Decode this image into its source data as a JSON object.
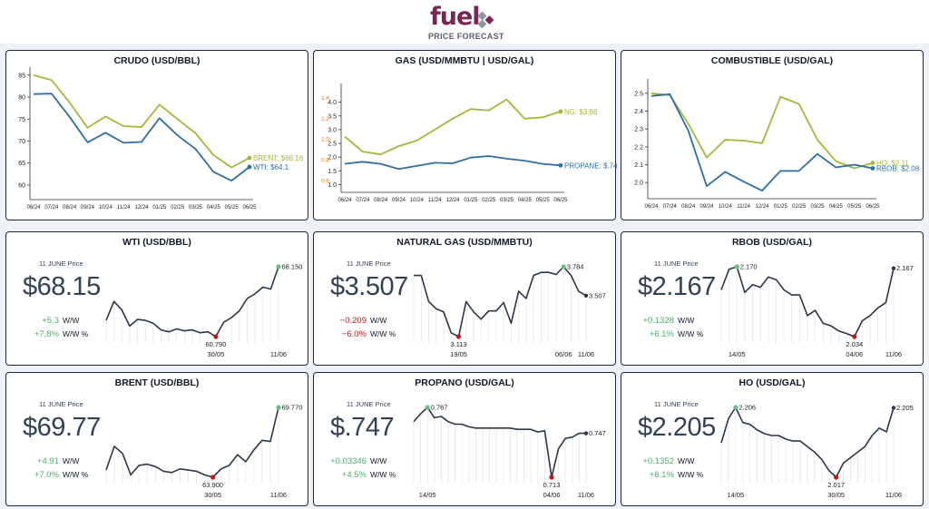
{
  "header": {
    "logo_text": "fuel",
    "subtitle": "PRICE FORECAST",
    "colors": {
      "brand": "#7a2553",
      "accent": "#8a9a9f"
    }
  },
  "chart_data": [
    {
      "id": "crudo",
      "type": "line",
      "title": "CRUDO (USD/BBL)",
      "categories": [
        "06/24",
        "07/24",
        "08/24",
        "09/24",
        "10/24",
        "11/24",
        "12/24",
        "01/25",
        "02/25",
        "03/25",
        "04/25",
        "05/25",
        "06/25"
      ],
      "ylim": [
        57.5,
        86
      ],
      "yticks": [
        60,
        65,
        70,
        75,
        80,
        85
      ],
      "series": [
        {
          "name": "BRENT",
          "label": "BRENT: $66.16",
          "color": "#a3b93b",
          "values": [
            85.0,
            83.9,
            78.8,
            73.0,
            75.6,
            73.4,
            73.2,
            78.3,
            75.0,
            71.8,
            66.8,
            64.0,
            66.16
          ]
        },
        {
          "name": "WTI",
          "label": "WTI: $64.1",
          "color": "#2f6ea3",
          "values": [
            80.7,
            80.8,
            75.5,
            69.7,
            71.9,
            69.6,
            69.8,
            75.2,
            71.3,
            68.2,
            63.0,
            61.0,
            64.1
          ]
        }
      ]
    },
    {
      "id": "gas",
      "type": "line",
      "title": "GAS (USD/MMBTU | USD/GAL)",
      "categories": [
        "06/24",
        "07/24",
        "08/24",
        "09/24",
        "10/24",
        "11/24",
        "12/24",
        "01/25",
        "02/25",
        "03/25",
        "04/25",
        "05/25",
        "06/25"
      ],
      "ylim": [
        0.85,
        4.55
      ],
      "yticks": [
        1.0,
        1.5,
        2.0,
        2.5,
        3.0,
        3.5,
        4.0
      ],
      "ylim2": [
        0.52,
        1.5
      ],
      "yticks2": [
        0.6,
        0.8,
        1.0,
        1.2,
        1.4
      ],
      "series": [
        {
          "name": "NG",
          "label": "NG: $3.66",
          "color": "#a3b93b",
          "axis": "left",
          "values": [
            2.75,
            2.2,
            2.1,
            2.4,
            2.6,
            3.0,
            3.4,
            3.75,
            3.7,
            4.1,
            3.4,
            3.45,
            3.66
          ]
        },
        {
          "name": "PROPANE",
          "label": "PROPANE: $.74",
          "color": "#2f6ea3",
          "axis": "right",
          "values": [
            0.76,
            0.78,
            0.76,
            0.71,
            0.74,
            0.77,
            0.765,
            0.82,
            0.835,
            0.81,
            0.79,
            0.76,
            0.745
          ]
        }
      ]
    },
    {
      "id": "combustible",
      "type": "line",
      "title": "COMBUSTIBLE (USD/GAL)",
      "categories": [
        "06/24",
        "07/24",
        "08/24",
        "09/24",
        "10/24",
        "11/24",
        "12/24",
        "01/25",
        "02/25",
        "03/25",
        "04/25",
        "05/25",
        "06/25"
      ],
      "ylim": [
        1.93,
        2.56
      ],
      "yticks": [
        2.0,
        2.1,
        2.2,
        2.3,
        2.4,
        2.5
      ],
      "series": [
        {
          "name": "HO",
          "label": "HO: $2.11",
          "color": "#a3b93b",
          "values": [
            2.5,
            2.49,
            2.33,
            2.14,
            2.24,
            2.235,
            2.22,
            2.48,
            2.44,
            2.24,
            2.12,
            2.08,
            2.11
          ]
        },
        {
          "name": "RBOB",
          "label": "RBOB: $2.08",
          "color": "#2f6ea3",
          "values": [
            2.485,
            2.495,
            2.29,
            1.98,
            2.06,
            2.005,
            1.955,
            2.065,
            2.065,
            2.16,
            2.085,
            2.1,
            2.08
          ]
        }
      ]
    },
    {
      "id": "wti",
      "type": "line",
      "title": "WTI (USD/BBL)",
      "price_caption": "11 JUNE Price",
      "price": "$68.15",
      "change": {
        "ww": "+5.3",
        "ww_pct": "+7.8%",
        "ww_label": "W/W",
        "ww_pct_label": "W/W %",
        "dir": "pos"
      },
      "values": [
        62.5,
        64.5,
        63.6,
        61.9,
        62.6,
        62.5,
        62.2,
        61.5,
        61.3,
        61.6,
        61.4,
        61.5,
        61.2,
        61.3,
        60.79,
        62.3,
        62.8,
        63.5,
        64.8,
        65.3,
        66.0,
        65.8,
        68.15
      ],
      "min": {
        "index": 14,
        "label": "60.790",
        "date": "30/05"
      },
      "max": {
        "index": 22,
        "label": "68.150"
      },
      "xticks": [
        {
          "index": 14,
          "label": "30/05"
        },
        {
          "index": 22,
          "label": "11/06"
        }
      ]
    },
    {
      "id": "natgas",
      "type": "line",
      "title": "NATURAL GAS (USD/MMBTU)",
      "price_caption": "11 JUNE Price",
      "price": "$3.507",
      "change": {
        "ww": "−0.209",
        "ww_pct": "−6.0%",
        "ww_label": "W/W",
        "ww_pct_label": "W/W %",
        "dir": "neg"
      },
      "values": [
        3.7,
        3.7,
        3.45,
        3.38,
        3.35,
        3.15,
        3.113,
        3.45,
        3.35,
        3.28,
        3.36,
        3.36,
        3.44,
        3.24,
        3.55,
        3.48,
        3.7,
        3.73,
        3.73,
        3.71,
        3.784,
        3.7,
        3.55,
        3.507
      ],
      "min": {
        "index": 6,
        "label": "3.113",
        "date": "19/05"
      },
      "max": {
        "index": 20,
        "label": "3.784"
      },
      "last_label": "3.507",
      "xticks": [
        {
          "index": 6,
          "label": "19/05"
        },
        {
          "index": 20,
          "label": "06/06"
        },
        {
          "index": 23,
          "label": "11/06"
        }
      ]
    },
    {
      "id": "rbob",
      "type": "line",
      "title": "RBOB (USD/GAL)",
      "price_caption": "11 JUNE Price",
      "price": "$2.167",
      "change": {
        "ww": "+0.1328",
        "ww_pct": "+6.1%",
        "ww_label": "W/W",
        "ww_pct_label": "W/W %",
        "dir": "pos"
      },
      "values": [
        2.125,
        2.165,
        2.17,
        2.12,
        2.135,
        2.13,
        2.15,
        2.145,
        2.125,
        2.115,
        2.115,
        2.075,
        2.085,
        2.06,
        2.055,
        2.045,
        2.04,
        2.034,
        2.065,
        2.075,
        2.09,
        2.1,
        2.167
      ],
      "min": {
        "index": 17,
        "label": "2.034",
        "date": "04/06"
      },
      "max": {
        "index": 2,
        "label": "2.170"
      },
      "last_label": "2.167",
      "xticks": [
        {
          "index": 2,
          "label": "14/05"
        },
        {
          "index": 17,
          "label": "04/06"
        },
        {
          "index": 22,
          "label": "11/06"
        }
      ]
    },
    {
      "id": "brent",
      "type": "line",
      "title": "BRENT (USD/BBL)",
      "price_caption": "11 JUNE Price",
      "price": "$69.77",
      "change": {
        "ww": "+4.91",
        "ww_pct": "+7.0%",
        "ww_label": "W/W",
        "ww_pct_label": "W/W %",
        "dir": "pos"
      },
      "values": [
        64.5,
        66.5,
        65.9,
        64.1,
        64.9,
        65.0,
        64.8,
        64.4,
        64.3,
        64.6,
        64.5,
        64.4,
        64.1,
        63.9,
        64.6,
        64.9,
        65.8,
        65.2,
        66.2,
        67.0,
        66.9,
        69.77
      ],
      "min": {
        "index": 13,
        "label": "63.900",
        "date": "30/05"
      },
      "max": {
        "index": 21,
        "label": "69.770"
      },
      "xticks": [
        {
          "index": 13,
          "label": "30/05"
        },
        {
          "index": 21,
          "label": "11/06"
        }
      ]
    },
    {
      "id": "propano",
      "type": "line",
      "title": "PROPANO (USD/GAL)",
      "price_caption": "11 JUNE Price",
      "price": "$.747",
      "change": {
        "ww": "+0.03346",
        "ww_pct": "+4.5%",
        "ww_label": "W/W",
        "ww_pct_label": "W/W %",
        "dir": "pos"
      },
      "values": [
        0.756,
        0.762,
        0.767,
        0.759,
        0.76,
        0.756,
        0.754,
        0.754,
        0.752,
        0.751,
        0.751,
        0.751,
        0.751,
        0.751,
        0.751,
        0.75,
        0.75,
        0.75,
        0.748,
        0.749,
        0.713,
        0.735,
        0.743,
        0.744,
        0.747,
        0.747
      ],
      "min": {
        "index": 20,
        "label": "0.713",
        "date": "04/06"
      },
      "max": {
        "index": 2,
        "label": "0.767"
      },
      "last_label": "0.747",
      "xticks": [
        {
          "index": 2,
          "label": "14/05"
        },
        {
          "index": 20,
          "label": "04/06"
        },
        {
          "index": 25,
          "label": "11/06"
        }
      ]
    },
    {
      "id": "ho",
      "type": "line",
      "title": "HO (USD/GAL)",
      "price_caption": "11 JUNE Price",
      "price": "$2.205",
      "change": {
        "ww": "+0.1352",
        "ww_pct": "+6.1%",
        "ww_label": "W/W",
        "ww_pct_label": "W/W %",
        "dir": "pos"
      },
      "values": [
        2.11,
        2.175,
        2.206,
        2.165,
        2.16,
        2.145,
        2.135,
        2.13,
        2.13,
        2.12,
        2.115,
        2.115,
        2.1,
        2.085,
        2.065,
        2.035,
        2.017,
        2.055,
        2.07,
        2.085,
        2.1,
        2.13,
        2.15,
        2.14,
        2.205
      ],
      "min": {
        "index": 16,
        "label": "2.017",
        "date": "30/05"
      },
      "max": {
        "index": 2,
        "label": "2.206"
      },
      "last_label": "2.205",
      "xticks": [
        {
          "index": 2,
          "label": "14/05"
        },
        {
          "index": 16,
          "label": "30/05"
        },
        {
          "index": 24,
          "label": "11/06"
        }
      ]
    }
  ]
}
